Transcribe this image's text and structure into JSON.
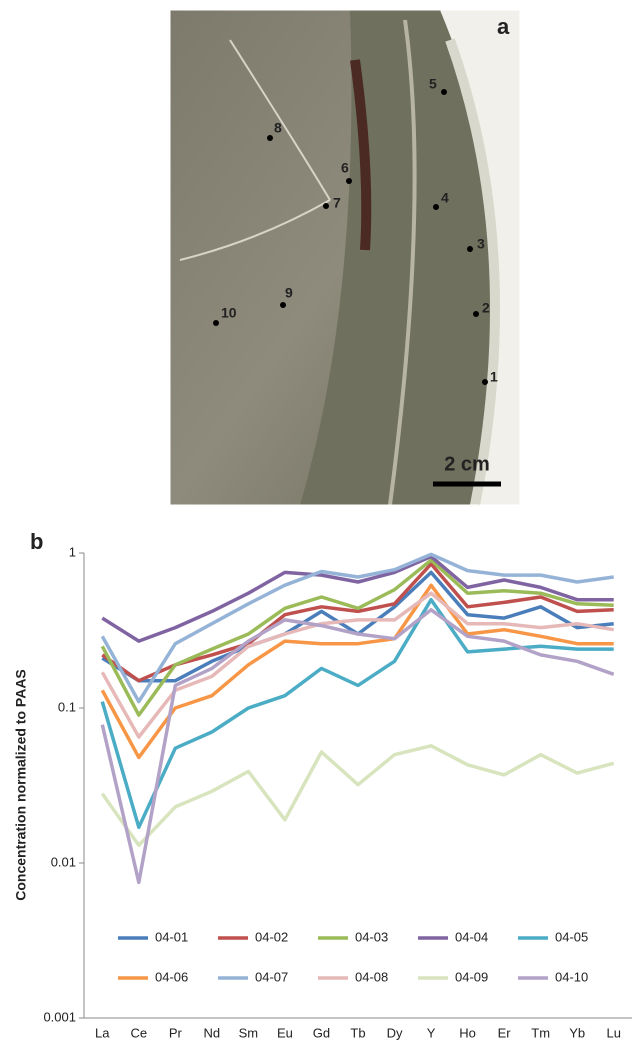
{
  "photo": {
    "panel_label": "a",
    "sample_points": [
      "1",
      "2",
      "3",
      "4",
      "5",
      "6",
      "7",
      "8",
      "9",
      "10"
    ],
    "scale_bar": "2 cm"
  },
  "chart_data": {
    "type": "line",
    "panel_label": "b",
    "y_label": "Concentration normalized to PAAS",
    "categories": [
      "La",
      "Ce",
      "Pr",
      "Nd",
      "Sm",
      "Eu",
      "Gd",
      "Tb",
      "Dy",
      "Y",
      "Ho",
      "Er",
      "Tm",
      "Yb",
      "Lu"
    ],
    "log_scale": true,
    "ylim": [
      0.001,
      1
    ],
    "yticks": [
      0.001,
      0.01,
      0.1,
      1
    ],
    "legend": "lower center",
    "series": [
      {
        "name": "04-01",
        "color": "#4a7ebb",
        "values": [
          0.21,
          0.15,
          0.15,
          0.2,
          0.25,
          0.3,
          0.42,
          0.3,
          0.45,
          0.75,
          0.4,
          0.38,
          0.45,
          0.33,
          0.35
        ]
      },
      {
        "name": "04-02",
        "color": "#c0504d",
        "values": [
          0.22,
          0.15,
          0.19,
          0.22,
          0.26,
          0.4,
          0.45,
          0.42,
          0.47,
          0.85,
          0.45,
          0.48,
          0.52,
          0.42,
          0.43
        ]
      },
      {
        "name": "04-03",
        "color": "#9bbb59",
        "values": [
          0.25,
          0.09,
          0.19,
          0.24,
          0.3,
          0.44,
          0.52,
          0.44,
          0.58,
          0.9,
          0.55,
          0.57,
          0.55,
          0.47,
          0.46
        ]
      },
      {
        "name": "04-04",
        "color": "#8064a2",
        "values": [
          0.38,
          0.27,
          0.33,
          0.42,
          0.55,
          0.75,
          0.72,
          0.65,
          0.75,
          0.95,
          0.6,
          0.67,
          0.6,
          0.5,
          0.5
        ]
      },
      {
        "name": "04-05",
        "color": "#4bacc6",
        "values": [
          0.11,
          0.017,
          0.055,
          0.07,
          0.1,
          0.12,
          0.18,
          0.14,
          0.2,
          0.5,
          0.23,
          0.24,
          0.25,
          0.24,
          0.24
        ]
      },
      {
        "name": "04-06",
        "color": "#f79646",
        "values": [
          0.13,
          0.048,
          0.1,
          0.12,
          0.19,
          0.27,
          0.26,
          0.26,
          0.28,
          0.62,
          0.3,
          0.32,
          0.29,
          0.26,
          0.26
        ]
      },
      {
        "name": "04-07",
        "color": "#95b3d7",
        "values": [
          0.29,
          0.11,
          0.26,
          0.35,
          0.47,
          0.62,
          0.76,
          0.7,
          0.78,
          0.98,
          0.77,
          0.72,
          0.72,
          0.65,
          0.7
        ]
      },
      {
        "name": "04-08",
        "color": "#e6b9b8",
        "values": [
          0.17,
          0.065,
          0.13,
          0.16,
          0.25,
          0.3,
          0.35,
          0.37,
          0.37,
          0.55,
          0.35,
          0.35,
          0.33,
          0.35,
          0.32
        ]
      },
      {
        "name": "04-09",
        "color": "#d7e4bd",
        "values": [
          0.028,
          0.013,
          0.023,
          0.029,
          0.039,
          0.019,
          0.052,
          0.032,
          0.05,
          0.057,
          0.043,
          0.037,
          0.05,
          0.038,
          0.044
        ]
      },
      {
        "name": "04-10",
        "color": "#b3a2c7",
        "values": [
          0.078,
          0.0075,
          0.14,
          0.18,
          0.27,
          0.37,
          0.34,
          0.3,
          0.28,
          0.43,
          0.29,
          0.27,
          0.22,
          0.2,
          0.165
        ]
      }
    ]
  }
}
